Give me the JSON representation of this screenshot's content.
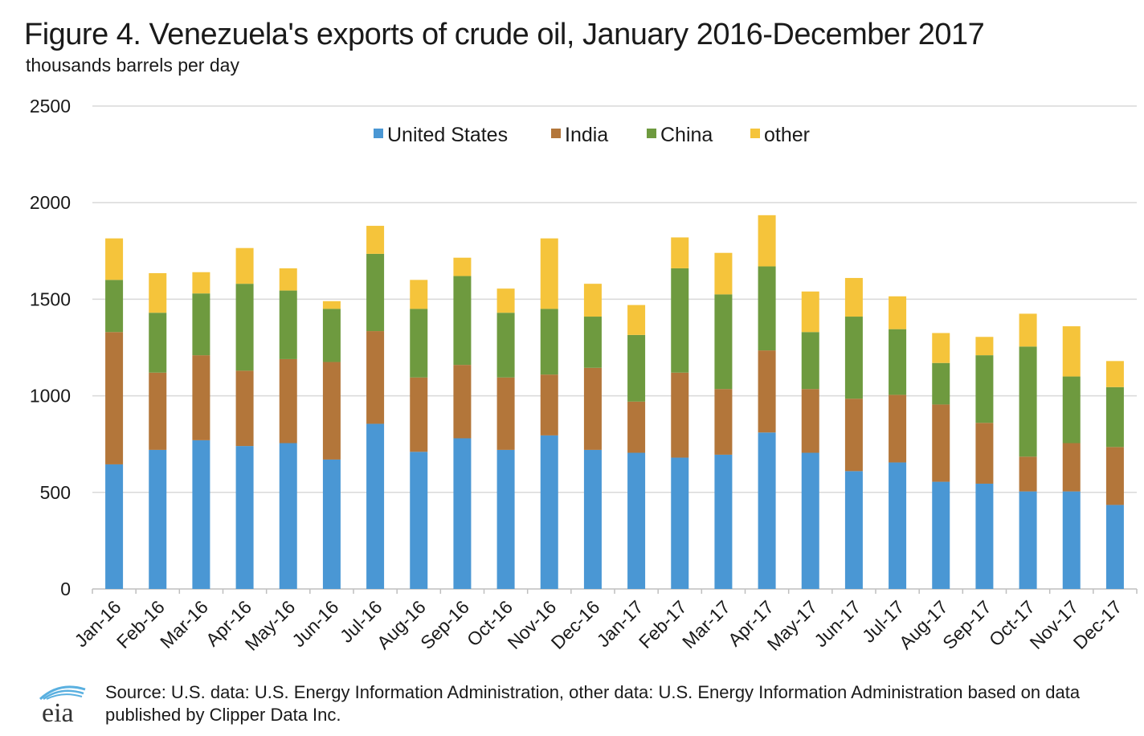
{
  "header": {
    "title": "Figure 4. Venezuela's exports of crude oil, January 2016-December 2017",
    "subtitle": "thousands barrels per day"
  },
  "footer": {
    "logo_text": "eia",
    "source": "Source: U.S. data: U.S. Energy Information Administration, other data: U.S. Energy Information Administration based on data published by Clipper Data Inc."
  },
  "colors": {
    "United States": "#4a97d4",
    "India": "#b3763a",
    "China": "#6e9a3f",
    "other": "#f5c43b",
    "grid": "#d9d9d9",
    "axis": "#bfbfbf"
  },
  "chart_data": {
    "type": "bar",
    "stacked": true,
    "title": "Figure 4. Venezuela's exports of crude oil, January 2016-December 2017",
    "ylabel": "thousands barrels per day",
    "ylim": [
      0,
      2500
    ],
    "yticks": [
      0,
      500,
      1000,
      1500,
      2000,
      2500
    ],
    "grid": true,
    "legend_position": "top-center",
    "categories": [
      "Jan-16",
      "Feb-16",
      "Mar-16",
      "Apr-16",
      "May-16",
      "Jun-16",
      "Jul-16",
      "Aug-16",
      "Sep-16",
      "Oct-16",
      "Nov-16",
      "Dec-16",
      "Jan-17",
      "Feb-17",
      "Mar-17",
      "Apr-17",
      "May-17",
      "Jun-17",
      "Jul-17",
      "Aug-17",
      "Sep-17",
      "Oct-17",
      "Nov-17",
      "Dec-17"
    ],
    "series": [
      {
        "name": "United States",
        "values": [
          645,
          720,
          770,
          740,
          755,
          670,
          855,
          710,
          780,
          720,
          795,
          720,
          705,
          680,
          695,
          810,
          705,
          610,
          655,
          555,
          545,
          505,
          505,
          435
        ]
      },
      {
        "name": "India",
        "values": [
          685,
          400,
          440,
          390,
          435,
          505,
          480,
          385,
          380,
          375,
          315,
          425,
          265,
          440,
          340,
          425,
          330,
          375,
          350,
          400,
          315,
          180,
          250,
          300
        ]
      },
      {
        "name": "China",
        "values": [
          270,
          310,
          320,
          450,
          355,
          275,
          400,
          355,
          460,
          335,
          340,
          265,
          345,
          540,
          490,
          435,
          295,
          425,
          340,
          215,
          350,
          570,
          345,
          310
        ]
      },
      {
        "name": "other",
        "values": [
          215,
          205,
          110,
          185,
          115,
          40,
          145,
          150,
          95,
          125,
          365,
          170,
          155,
          160,
          215,
          265,
          210,
          200,
          170,
          155,
          95,
          170,
          260,
          135
        ]
      }
    ]
  }
}
